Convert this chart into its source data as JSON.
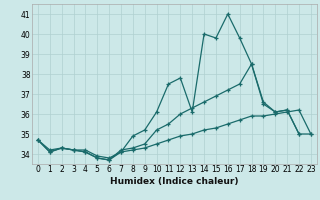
{
  "xlabel": "Humidex (Indice chaleur)",
  "ylabel": "",
  "background_color": "#cce8e8",
  "grid_color": "#b0d0d0",
  "line_color": "#1a6b6b",
  "xlim": [
    -0.5,
    23.5
  ],
  "ylim": [
    33.5,
    41.5
  ],
  "yticks": [
    34,
    35,
    36,
    37,
    38,
    39,
    40,
    41
  ],
  "xticks": [
    0,
    1,
    2,
    3,
    4,
    5,
    6,
    7,
    8,
    9,
    10,
    11,
    12,
    13,
    14,
    15,
    16,
    17,
    18,
    19,
    20,
    21,
    22,
    23
  ],
  "series": [
    {
      "x": [
        0,
        1,
        2,
        3,
        4,
        5,
        6,
        7,
        8,
        9,
        10,
        11,
        12,
        13,
        14,
        15,
        16,
        17,
        18,
        19,
        20,
        21,
        22
      ],
      "y": [
        34.7,
        34.1,
        34.3,
        34.2,
        34.1,
        33.8,
        33.7,
        34.1,
        34.9,
        35.2,
        36.1,
        37.5,
        37.8,
        36.1,
        40.0,
        39.8,
        41.0,
        39.8,
        38.5,
        36.6,
        36.1,
        36.2,
        35.0
      ]
    },
    {
      "x": [
        0,
        1,
        2,
        3,
        4,
        5,
        6,
        7,
        8,
        9,
        10,
        11,
        12,
        13,
        14,
        15,
        16,
        17,
        18,
        19,
        20,
        21,
        22,
        23
      ],
      "y": [
        34.7,
        34.1,
        34.3,
        34.2,
        34.1,
        33.8,
        33.7,
        34.2,
        34.3,
        34.5,
        35.2,
        35.5,
        36.0,
        36.3,
        36.6,
        36.9,
        37.2,
        37.5,
        38.5,
        36.5,
        36.1,
        36.2,
        35.0,
        35.0
      ]
    },
    {
      "x": [
        0,
        1,
        2,
        3,
        4,
        5,
        6,
        7,
        8,
        9,
        10,
        11,
        12,
        13,
        14,
        15,
        16,
        17,
        18,
        19,
        20,
        21,
        22,
        23
      ],
      "y": [
        34.7,
        34.2,
        34.3,
        34.2,
        34.2,
        33.9,
        33.8,
        34.1,
        34.2,
        34.3,
        34.5,
        34.7,
        34.9,
        35.0,
        35.2,
        35.3,
        35.5,
        35.7,
        35.9,
        35.9,
        36.0,
        36.1,
        36.2,
        35.0
      ]
    }
  ],
  "tick_fontsize": 5.5,
  "xlabel_fontsize": 6.5
}
